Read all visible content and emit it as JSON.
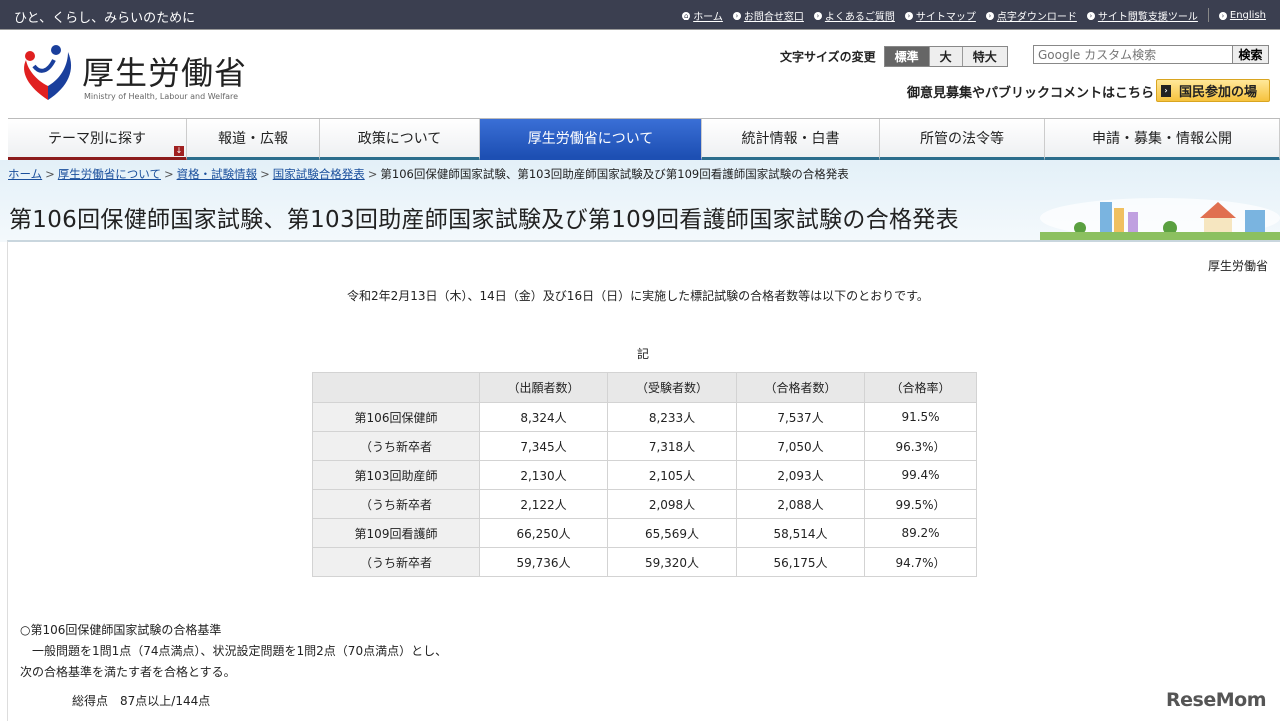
{
  "topbar": {
    "tagline": "ひと、くらし、みらいのために",
    "links": [
      "ホーム",
      "お問合せ窓口",
      "よくあるご質問",
      "サイトマップ",
      "点字ダウンロード",
      "サイト閲覧支援ツール",
      "English"
    ]
  },
  "header": {
    "logo_title": "厚生労働省",
    "logo_en": "Ministry of Health, Labour and Welfare",
    "fontsize_label": "文字サイズの変更",
    "fontsize_options": [
      "標準",
      "大",
      "特大"
    ],
    "fontsize_selected": "標準",
    "search_placeholder": "Google カスタム検索",
    "search_button": "検索",
    "opinion": "御意見募集やパブリックコメントはこちら",
    "sanka_button": "国民参加の場"
  },
  "nav": {
    "items": [
      "テーマ別に探す",
      "報道・広報",
      "政策について",
      "厚生労働省について",
      "統計情報・白書",
      "所管の法令等",
      "申請・募集・情報公開"
    ],
    "active": "厚生労働省について"
  },
  "breadcrumb": {
    "links": [
      "ホーム",
      "厚生労働省について",
      "資格・試験情報",
      "国家試験合格発表"
    ],
    "current": "第106回保健師国家試験、第103回助産師国家試験及び第109回看護師国家試験の合格発表"
  },
  "page": {
    "title": "第106回保健師国家試験、第103回助産師国家試験及び第109回看護師国家試験の合格発表",
    "source": "厚生労働省",
    "intro": "令和2年2月13日（木）、14日（金）及び16日（日）に実施した標記試験の合格者数等は以下のとおりです。",
    "ki": "記"
  },
  "table": {
    "headers": [
      "",
      "（出願者数）",
      "（受験者数）",
      "（合格者数）",
      "（合格率）"
    ],
    "rows": [
      [
        "第106回保健師",
        "8,324人",
        "8,233人",
        "7,537人",
        "91.5%"
      ],
      [
        "（うち新卒者",
        "7,345人",
        "7,318人",
        "7,050人",
        "96.3%）"
      ],
      [
        "第103回助産師",
        "2,130人",
        "2,105人",
        "2,093人",
        "99.4%"
      ],
      [
        "（うち新卒者",
        "2,122人",
        "2,098人",
        "2,088人",
        "99.5%）"
      ],
      [
        "第109回看護師",
        "66,250人",
        "65,569人",
        "58,514人",
        "89.2%"
      ],
      [
        "（うち新卒者",
        "59,736人",
        "59,320人",
        "56,175人",
        "94.7%）"
      ]
    ]
  },
  "notes": {
    "heading": "○第106回保健師国家試験の合格基準",
    "line1": "　一般問題を1問1点（74点満点）、状況設定問題を1問2点（70点満点）とし、",
    "line2": "次の合格基準を満たす者を合格とする。",
    "total": "総得点　87点以上/144点"
  },
  "watermark": "ReseMom"
}
